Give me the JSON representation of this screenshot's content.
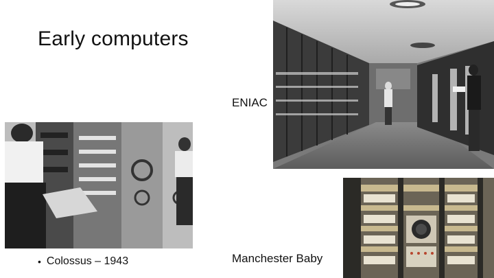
{
  "slide": {
    "title": "Early computers",
    "captions": {
      "eniac": "ENIAC",
      "baby": "Manchester Baby"
    },
    "bullets": [
      {
        "marker": "•",
        "text": "Colossus – 1943"
      }
    ]
  },
  "photos": [
    {
      "name": "eniac-photo",
      "subject": "ENIAC"
    },
    {
      "name": "colossus-photo",
      "subject": "Colossus"
    },
    {
      "name": "manchester-baby-photo",
      "subject": "Manchester Baby"
    }
  ]
}
